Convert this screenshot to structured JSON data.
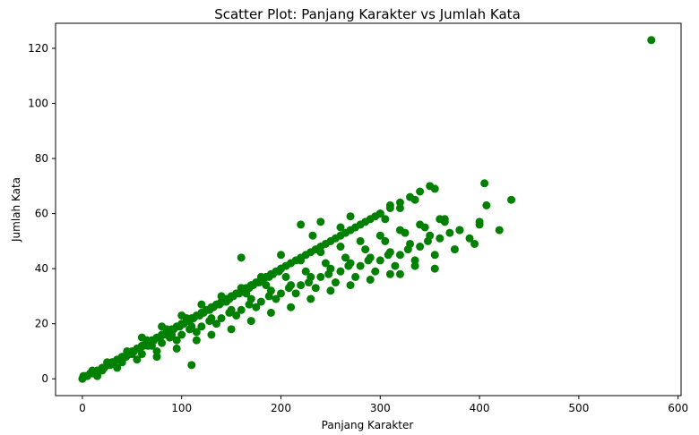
{
  "chart_data": {
    "type": "scatter",
    "title": "Scatter Plot: Panjang Karakter vs Jumlah Kata",
    "xlabel": "Panjang Karakter",
    "ylabel": "Jumlah Kata",
    "xlim": [
      -27,
      603
    ],
    "ylim": [
      -6.1,
      129.1
    ],
    "xticks": [
      0,
      100,
      200,
      300,
      400,
      500,
      600
    ],
    "yticks": [
      0,
      20,
      40,
      60,
      80,
      100,
      120
    ],
    "grid": false,
    "marker_color": "#008000",
    "series": [
      {
        "points": [
          [
            0,
            0
          ],
          [
            1,
            1
          ],
          [
            3,
            1
          ],
          [
            5,
            1
          ],
          [
            8,
            2
          ],
          [
            10,
            2
          ],
          [
            12,
            2
          ],
          [
            15,
            3
          ],
          [
            18,
            3
          ],
          [
            20,
            4
          ],
          [
            22,
            4
          ],
          [
            25,
            5
          ],
          [
            28,
            5
          ],
          [
            30,
            6
          ],
          [
            32,
            6
          ],
          [
            35,
            7
          ],
          [
            38,
            7
          ],
          [
            40,
            8
          ],
          [
            42,
            8
          ],
          [
            45,
            9
          ],
          [
            48,
            9
          ],
          [
            50,
            10
          ],
          [
            52,
            10
          ],
          [
            55,
            11
          ],
          [
            58,
            11
          ],
          [
            60,
            12
          ],
          [
            62,
            12
          ],
          [
            65,
            13
          ],
          [
            68,
            13
          ],
          [
            70,
            14
          ],
          [
            72,
            14
          ],
          [
            75,
            15
          ],
          [
            78,
            15
          ],
          [
            80,
            16
          ],
          [
            82,
            16
          ],
          [
            85,
            17
          ],
          [
            88,
            17
          ],
          [
            90,
            18
          ],
          [
            92,
            18
          ],
          [
            95,
            19
          ],
          [
            98,
            19
          ],
          [
            100,
            20
          ],
          [
            102,
            20
          ],
          [
            105,
            21
          ],
          [
            108,
            21
          ],
          [
            110,
            22
          ],
          [
            112,
            22
          ],
          [
            115,
            23
          ],
          [
            118,
            23
          ],
          [
            120,
            24
          ],
          [
            122,
            24
          ],
          [
            125,
            25
          ],
          [
            128,
            25
          ],
          [
            130,
            26
          ],
          [
            132,
            26
          ],
          [
            135,
            27
          ],
          [
            138,
            27
          ],
          [
            140,
            28
          ],
          [
            142,
            28
          ],
          [
            145,
            29
          ],
          [
            148,
            29
          ],
          [
            150,
            30
          ],
          [
            152,
            30
          ],
          [
            155,
            31
          ],
          [
            158,
            31
          ],
          [
            160,
            32
          ],
          [
            162,
            32
          ],
          [
            165,
            33
          ],
          [
            168,
            33
          ],
          [
            170,
            34
          ],
          [
            172,
            34
          ],
          [
            175,
            35
          ],
          [
            178,
            35
          ],
          [
            180,
            36
          ],
          [
            182,
            36
          ],
          [
            185,
            37
          ],
          [
            188,
            37
          ],
          [
            190,
            38
          ],
          [
            192,
            38
          ],
          [
            195,
            39
          ],
          [
            198,
            39
          ],
          [
            200,
            40
          ],
          [
            205,
            41
          ],
          [
            210,
            42
          ],
          [
            215,
            43
          ],
          [
            220,
            44
          ],
          [
            225,
            45
          ],
          [
            230,
            46
          ],
          [
            235,
            47
          ],
          [
            240,
            48
          ],
          [
            245,
            49
          ],
          [
            250,
            50
          ],
          [
            255,
            51
          ],
          [
            260,
            52
          ],
          [
            265,
            53
          ],
          [
            270,
            54
          ],
          [
            275,
            55
          ],
          [
            280,
            56
          ],
          [
            285,
            57
          ],
          [
            290,
            58
          ],
          [
            295,
            59
          ],
          [
            300,
            60
          ],
          [
            310,
            62
          ],
          [
            320,
            64
          ],
          [
            330,
            66
          ],
          [
            340,
            68
          ],
          [
            350,
            70
          ],
          [
            20,
            3
          ],
          [
            40,
            6
          ],
          [
            60,
            9
          ],
          [
            80,
            13
          ],
          [
            100,
            16
          ],
          [
            120,
            19
          ],
          [
            140,
            22
          ],
          [
            160,
            25
          ],
          [
            180,
            28
          ],
          [
            200,
            31
          ],
          [
            220,
            34
          ],
          [
            240,
            37
          ],
          [
            260,
            39
          ],
          [
            280,
            41
          ],
          [
            300,
            43
          ],
          [
            320,
            45
          ],
          [
            340,
            48
          ],
          [
            360,
            51
          ],
          [
            380,
            54
          ],
          [
            400,
            56
          ],
          [
            30,
            6
          ],
          [
            50,
            9
          ],
          [
            70,
            12
          ],
          [
            90,
            16
          ],
          [
            110,
            19
          ],
          [
            130,
            22
          ],
          [
            150,
            25
          ],
          [
            170,
            29
          ],
          [
            190,
            32
          ],
          [
            210,
            34
          ],
          [
            230,
            37
          ],
          [
            250,
            40
          ],
          [
            270,
            42
          ],
          [
            290,
            44
          ],
          [
            310,
            46
          ],
          [
            330,
            49
          ],
          [
            350,
            52
          ],
          [
            370,
            53
          ],
          [
            15,
            1
          ],
          [
            35,
            4
          ],
          [
            55,
            7
          ],
          [
            75,
            10
          ],
          [
            95,
            14
          ],
          [
            115,
            17
          ],
          [
            135,
            20
          ],
          [
            155,
            23
          ],
          [
            175,
            26
          ],
          [
            195,
            29
          ],
          [
            215,
            31
          ],
          [
            235,
            33
          ],
          [
            255,
            35
          ],
          [
            275,
            37
          ],
          [
            295,
            39
          ],
          [
            315,
            41
          ],
          [
            335,
            43
          ],
          [
            355,
            45
          ],
          [
            375,
            47
          ],
          [
            395,
            49
          ],
          [
            10,
            3
          ],
          [
            25,
            6
          ],
          [
            45,
            10
          ],
          [
            65,
            14
          ],
          [
            85,
            18
          ],
          [
            105,
            22
          ],
          [
            125,
            25
          ],
          [
            145,
            28
          ],
          [
            165,
            31
          ],
          [
            185,
            34
          ],
          [
            205,
            37
          ],
          [
            225,
            39
          ],
          [
            245,
            42
          ],
          [
            265,
            44
          ],
          [
            285,
            47
          ],
          [
            305,
            50
          ],
          [
            325,
            53
          ],
          [
            345,
            55
          ],
          [
            365,
            57
          ],
          [
            44,
            8
          ],
          [
            66,
            12
          ],
          [
            88,
            15
          ],
          [
            108,
            18
          ],
          [
            128,
            21
          ],
          [
            148,
            24
          ],
          [
            168,
            27
          ],
          [
            188,
            30
          ],
          [
            208,
            33
          ],
          [
            228,
            35
          ],
          [
            248,
            38
          ],
          [
            268,
            41
          ],
          [
            288,
            43
          ],
          [
            308,
            45
          ],
          [
            328,
            47
          ],
          [
            348,
            50
          ],
          [
            60,
            15
          ],
          [
            80,
            19
          ],
          [
            100,
            23
          ],
          [
            120,
            27
          ],
          [
            140,
            30
          ],
          [
            160,
            33
          ],
          [
            180,
            37
          ],
          [
            200,
            40
          ],
          [
            220,
            43
          ],
          [
            240,
            46
          ],
          [
            260,
            48
          ],
          [
            280,
            50
          ],
          [
            300,
            52
          ],
          [
            320,
            54
          ],
          [
            340,
            56
          ],
          [
            160,
            44
          ],
          [
            200,
            45
          ],
          [
            210,
            42
          ],
          [
            220,
            56
          ],
          [
            232,
            52
          ],
          [
            240,
            57
          ],
          [
            260,
            55
          ],
          [
            270,
            59
          ],
          [
            300,
            60
          ],
          [
            305,
            58
          ],
          [
            310,
            63
          ],
          [
            320,
            62
          ],
          [
            335,
            65
          ],
          [
            355,
            69
          ],
          [
            360,
            58
          ],
          [
            365,
            58
          ],
          [
            380,
            54
          ],
          [
            390,
            51
          ],
          [
            405,
            71
          ],
          [
            407,
            63
          ],
          [
            400,
            57
          ],
          [
            420,
            54
          ],
          [
            432,
            65
          ],
          [
            355,
            40
          ],
          [
            335,
            41
          ],
          [
            320,
            38
          ],
          [
            110,
            5
          ],
          [
            250,
            32
          ],
          [
            270,
            34
          ],
          [
            290,
            36
          ],
          [
            310,
            38
          ],
          [
            230,
            29
          ],
          [
            210,
            26
          ],
          [
            190,
            24
          ],
          [
            170,
            21
          ],
          [
            150,
            18
          ],
          [
            130,
            16
          ],
          [
            115,
            14
          ],
          [
            95,
            11
          ],
          [
            75,
            8
          ],
          [
            573,
            123
          ]
        ]
      }
    ]
  }
}
